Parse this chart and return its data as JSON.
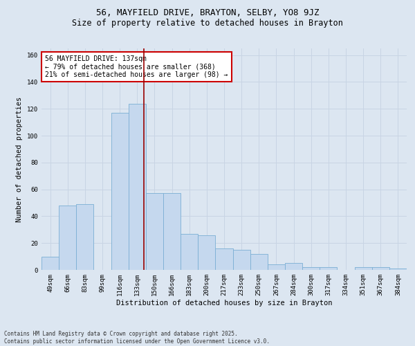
{
  "title_line1": "56, MAYFIELD DRIVE, BRAYTON, SELBY, YO8 9JZ",
  "title_line2": "Size of property relative to detached houses in Brayton",
  "xlabel": "Distribution of detached houses by size in Brayton",
  "ylabel": "Number of detached properties",
  "bins": [
    "49sqm",
    "66sqm",
    "83sqm",
    "99sqm",
    "116sqm",
    "133sqm",
    "150sqm",
    "166sqm",
    "183sqm",
    "200sqm",
    "217sqm",
    "233sqm",
    "250sqm",
    "267sqm",
    "284sqm",
    "300sqm",
    "317sqm",
    "334sqm",
    "351sqm",
    "367sqm",
    "384sqm"
  ],
  "values": [
    10,
    48,
    49,
    0,
    117,
    124,
    57,
    57,
    27,
    26,
    16,
    15,
    12,
    4,
    5,
    2,
    2,
    0,
    2,
    2,
    1
  ],
  "bar_color": "#c5d8ee",
  "bar_edge_color": "#7bafd4",
  "grid_color": "#c8d4e4",
  "background_color": "#dce6f1",
  "vline_color": "#990000",
  "annotation_text": "56 MAYFIELD DRIVE: 137sqm\n← 79% of detached houses are smaller (368)\n21% of semi-detached houses are larger (98) →",
  "annotation_box_color": "#ffffff",
  "annotation_box_edge_color": "#cc0000",
  "ylim": [
    0,
    165
  ],
  "yticks": [
    0,
    20,
    40,
    60,
    80,
    100,
    120,
    140,
    160
  ],
  "footnote": "Contains HM Land Registry data © Crown copyright and database right 2025.\nContains public sector information licensed under the Open Government Licence v3.0.",
  "title_fontsize": 9,
  "subtitle_fontsize": 8.5,
  "axis_label_fontsize": 7.5,
  "tick_fontsize": 6.5,
  "annotation_fontsize": 7
}
